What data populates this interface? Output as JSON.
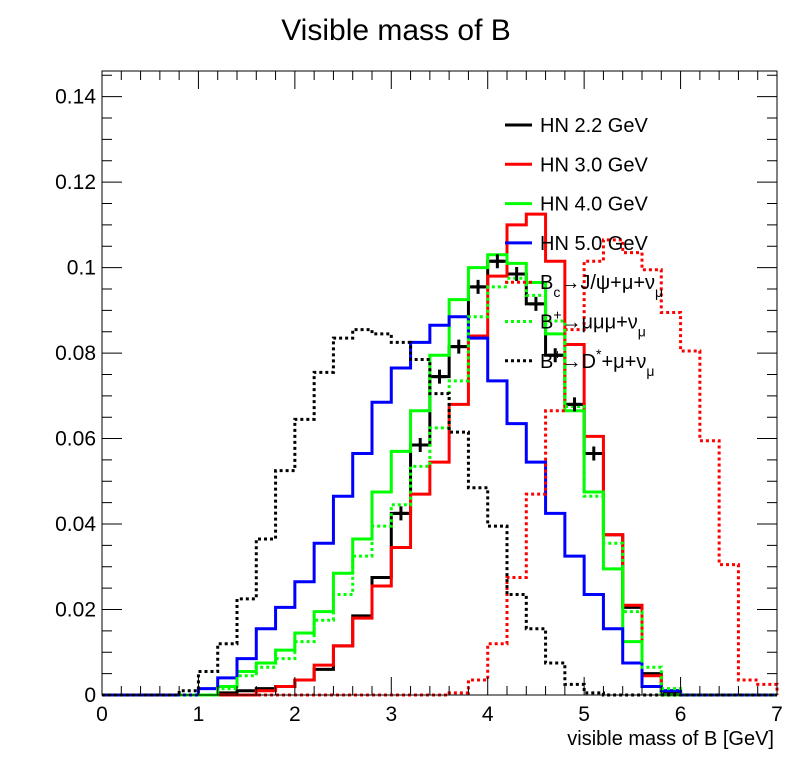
{
  "chart_data": {
    "type": "line",
    "title": "Visible mass of B",
    "xlabel": "visible mass of B [GeV]",
    "ylabel": "",
    "xlim": [
      0,
      7
    ],
    "ylim": [
      0,
      0.146
    ],
    "x_ticks": [
      "0",
      "1",
      "2",
      "3",
      "4",
      "5",
      "6",
      "7"
    ],
    "y_ticks": [
      "0",
      "0.02",
      "0.04",
      "0.06",
      "0.08",
      "0.1",
      "0.12",
      "0.14"
    ],
    "grid": false,
    "legend_position": "top-right",
    "bin_edges": [
      0,
      0.2,
      0.4,
      0.6,
      0.8,
      1.0,
      1.2,
      1.4,
      1.6,
      1.8,
      2.0,
      2.2,
      2.4,
      2.6,
      2.8,
      3.0,
      3.2,
      3.4,
      3.6,
      3.8,
      4.0,
      4.2,
      4.4,
      4.6,
      4.8,
      5.0,
      5.2,
      5.4,
      5.6,
      5.8,
      6.0,
      6.2,
      6.4,
      6.6,
      6.8,
      7.0
    ],
    "series": [
      {
        "name": "HN 2.2 GeV",
        "color": "#000000",
        "style": "solid",
        "values": [
          0,
          0,
          0,
          0,
          0,
          0,
          0.0005,
          0.001,
          0.0015,
          0.002,
          0.0035,
          0.006,
          0.0115,
          0.0185,
          0.0275,
          0.0425,
          0.0585,
          0.0745,
          0.0815,
          0.0955,
          0.1015,
          0.0985,
          0.0915,
          0.0795,
          0.068,
          0.0565,
          0.0375,
          0.0205,
          0.005,
          0.0005,
          0,
          0,
          0,
          0,
          0
        ]
      },
      {
        "name": "HN 3.0 GeV",
        "color": "#ff0000",
        "style": "solid",
        "values": [
          0,
          0,
          0,
          0,
          0,
          0,
          0,
          0,
          0.001,
          0.002,
          0.0035,
          0.007,
          0.0115,
          0.018,
          0.0255,
          0.0345,
          0.047,
          0.0545,
          0.068,
          0.084,
          0.098,
          0.11,
          0.1125,
          0.1015,
          0.082,
          0.0605,
          0.0375,
          0.021,
          0.0045,
          0.001,
          0,
          0,
          0,
          0,
          0
        ]
      },
      {
        "name": "HN 4.0 GeV",
        "color": "#00ff00",
        "style": "solid",
        "values": [
          0,
          0,
          0,
          0,
          0,
          0,
          0.002,
          0.0055,
          0.0075,
          0.0105,
          0.0145,
          0.0195,
          0.0285,
          0.0365,
          0.0475,
          0.057,
          0.0665,
          0.0795,
          0.0925,
          0.1,
          0.103,
          0.101,
          0.0965,
          0.0845,
          0.0665,
          0.0475,
          0.0295,
          0.0125,
          0.002,
          0,
          0,
          0,
          0,
          0,
          0
        ]
      },
      {
        "name": "HN 5.0 GeV",
        "color": "#0000ff",
        "style": "solid",
        "values": [
          0,
          0,
          0,
          0,
          0,
          0.0015,
          0.004,
          0.0085,
          0.0155,
          0.0205,
          0.0265,
          0.0355,
          0.0465,
          0.0565,
          0.0685,
          0.0765,
          0.0825,
          0.0865,
          0.0885,
          0.0835,
          0.0735,
          0.0635,
          0.0545,
          0.0425,
          0.0325,
          0.0235,
          0.0155,
          0.0075,
          0.002,
          0.001,
          0,
          0,
          0,
          0,
          0
        ]
      },
      {
        "name": "B_c→J/ψ+μ+ν_μ",
        "legend_parts": [
          "B",
          "c",
          "→J/ψ+μ+ν",
          "μ"
        ],
        "color": "#ff0000",
        "style": "dotted",
        "values": [
          0,
          0,
          0,
          0,
          0,
          0,
          0,
          0,
          0,
          0,
          0,
          0,
          0,
          0,
          0,
          0,
          0,
          0,
          0.0005,
          0.0035,
          0.012,
          0.0275,
          0.047,
          0.0665,
          0.0855,
          0.1015,
          0.1065,
          0.1035,
          0.0995,
          0.0895,
          0.0805,
          0.0595,
          0.0305,
          0.0035,
          0.0025
        ]
      },
      {
        "name": "B^+→μμμ+ν_μ",
        "legend_parts": [
          "B",
          "+",
          "→μμμ+ν",
          "μ"
        ],
        "color": "#00ff00",
        "style": "dotted",
        "values": [
          0,
          0,
          0,
          0,
          0,
          0,
          0.0015,
          0.0045,
          0.0065,
          0.0085,
          0.0125,
          0.0175,
          0.0235,
          0.0325,
          0.0395,
          0.0445,
          0.0535,
          0.0625,
          0.0735,
          0.0885,
          0.0955,
          0.0975,
          0.0935,
          0.0875,
          0.0675,
          0.0465,
          0.0355,
          0.0195,
          0.0065,
          0.0015,
          0,
          0,
          0,
          0,
          0
        ]
      },
      {
        "name": "B^+→D*+μ+ν_μ",
        "legend_parts": [
          "B",
          "+",
          "→D",
          "*",
          "+μ+ν",
          "μ"
        ],
        "color": "#000000",
        "style": "dotted",
        "values": [
          0,
          0,
          0,
          0,
          0.001,
          0.0055,
          0.012,
          0.0225,
          0.0365,
          0.0525,
          0.0645,
          0.0755,
          0.0835,
          0.0855,
          0.0845,
          0.0825,
          0.0785,
          0.0705,
          0.0615,
          0.0485,
          0.0395,
          0.0235,
          0.0155,
          0.0075,
          0.0025,
          0.0005,
          0,
          0,
          0,
          0,
          0,
          0,
          0,
          0,
          0
        ]
      }
    ],
    "points": {
      "series": "HN 2.2 GeV",
      "color": "#000000",
      "x": [
        3.1,
        3.3,
        3.5,
        3.7,
        3.9,
        4.1,
        4.3,
        4.5,
        4.7,
        4.9,
        5.1
      ],
      "y": [
        0.0425,
        0.0585,
        0.0745,
        0.0815,
        0.0955,
        0.1015,
        0.0985,
        0.0915,
        0.0795,
        0.068,
        0.0565
      ]
    }
  }
}
